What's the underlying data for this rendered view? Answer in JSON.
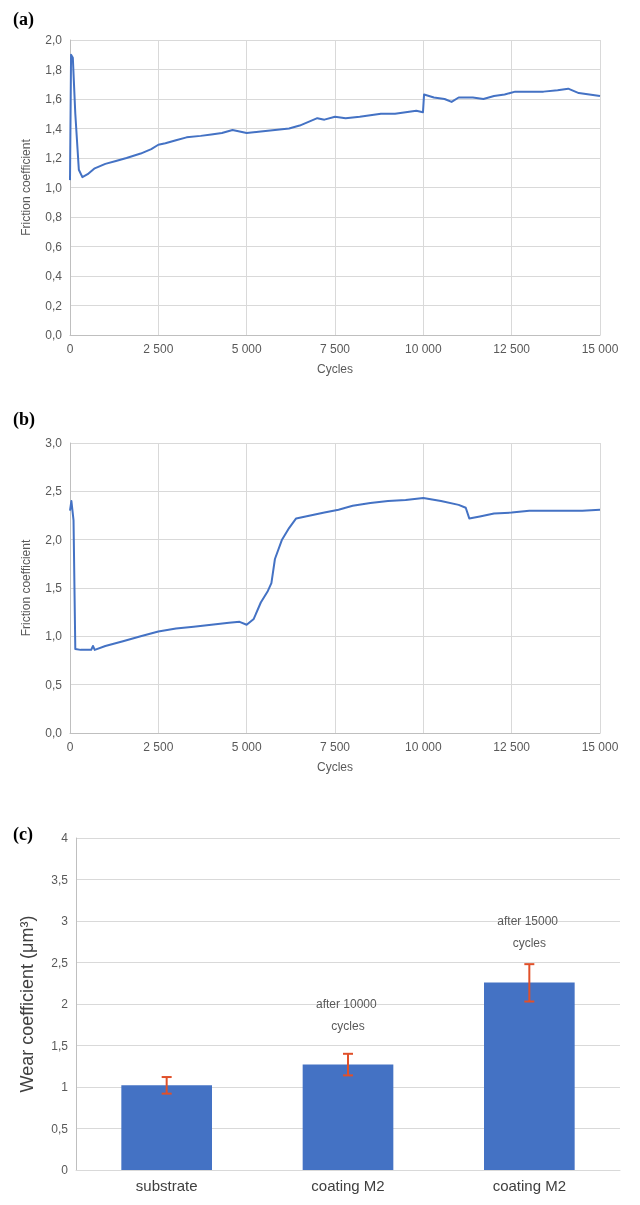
{
  "chart_data": [
    {
      "type": "line",
      "title": "(a)",
      "xlabel": "Cycles",
      "ylabel": "Friction coefficient",
      "color": "#4472c4",
      "marker": "none",
      "grid": true,
      "x": [
        0,
        30,
        80,
        150,
        250,
        350,
        500,
        700,
        1000,
        1300,
        1600,
        2000,
        2300,
        2500,
        2700,
        3000,
        3300,
        3700,
        4000,
        4300,
        4600,
        5000,
        5400,
        5800,
        6200,
        6500,
        6800,
        7000,
        7200,
        7500,
        7800,
        8200,
        8500,
        8800,
        9200,
        9500,
        9800,
        9990,
        10020,
        10300,
        10600,
        10800,
        11000,
        11400,
        11700,
        12000,
        12300,
        12600,
        13000,
        13400,
        13800,
        14100,
        14400,
        14700,
        15000
      ],
      "values": [
        1.05,
        1.9,
        1.88,
        1.5,
        1.12,
        1.07,
        1.09,
        1.13,
        1.16,
        1.18,
        1.2,
        1.23,
        1.26,
        1.29,
        1.3,
        1.32,
        1.34,
        1.35,
        1.36,
        1.37,
        1.39,
        1.37,
        1.38,
        1.39,
        1.4,
        1.42,
        1.45,
        1.47,
        1.46,
        1.48,
        1.47,
        1.48,
        1.49,
        1.5,
        1.5,
        1.51,
        1.52,
        1.51,
        1.63,
        1.61,
        1.6,
        1.58,
        1.61,
        1.61,
        1.6,
        1.62,
        1.63,
        1.65,
        1.65,
        1.65,
        1.66,
        1.67,
        1.64,
        1.63,
        1.62
      ],
      "xlim": [
        0,
        15000
      ],
      "xticks": [
        0,
        {
          "value": 2500,
          "label": "2 500"
        },
        {
          "value": 5000,
          "label": "5 000"
        },
        {
          "value": 7500,
          "label": "7 500"
        },
        {
          "value": 10000,
          "label": "10 000"
        },
        {
          "value": 12500,
          "label": "12 500"
        },
        {
          "value": 15000,
          "label": "15 000"
        }
      ],
      "ylim": [
        0,
        2
      ],
      "yticks": [
        {
          "value": 0,
          "label": "0,0"
        },
        {
          "value": 0.2,
          "label": "0,2"
        },
        {
          "value": 0.4,
          "label": "0,4"
        },
        {
          "value": 0.6,
          "label": "0,6"
        },
        {
          "value": 0.8,
          "label": "0,8"
        },
        {
          "value": 1,
          "label": "1,0"
        },
        {
          "value": 1.2,
          "label": "1,2"
        },
        {
          "value": 1.4,
          "label": "1,4"
        },
        {
          "value": 1.6,
          "label": "1,6"
        },
        {
          "value": 1.8,
          "label": "1,8"
        },
        {
          "value": 2,
          "label": "2,0"
        }
      ]
    },
    {
      "type": "line",
      "title": "(b)",
      "xlabel": "Cycles",
      "ylabel": "Friction coefficient",
      "color": "#4472c4",
      "marker": "none",
      "grid": true,
      "x": [
        0,
        40,
        100,
        150,
        300,
        600,
        650,
        700,
        1000,
        1500,
        2000,
        2500,
        3000,
        3500,
        4000,
        4500,
        4800,
        5000,
        5200,
        5400,
        5600,
        5700,
        5800,
        6000,
        6200,
        6400,
        6800,
        7200,
        7600,
        8000,
        8500,
        9000,
        9500,
        10000,
        10500,
        11000,
        11200,
        11300,
        11600,
        12000,
        12500,
        13000,
        13500,
        14000,
        14500,
        15000
      ],
      "values": [
        2.3,
        2.4,
        2.2,
        0.87,
        0.86,
        0.86,
        0.9,
        0.86,
        0.9,
        0.95,
        1.0,
        1.05,
        1.08,
        1.1,
        1.12,
        1.14,
        1.15,
        1.12,
        1.18,
        1.35,
        1.47,
        1.55,
        1.8,
        2.0,
        2.12,
        2.22,
        2.25,
        2.28,
        2.31,
        2.35,
        2.38,
        2.4,
        2.41,
        2.43,
        2.4,
        2.36,
        2.33,
        2.22,
        2.24,
        2.27,
        2.28,
        2.3,
        2.3,
        2.3,
        2.3,
        2.31
      ],
      "xlim": [
        0,
        15000
      ],
      "xticks": [
        0,
        {
          "value": 2500,
          "label": "2 500"
        },
        {
          "value": 5000,
          "label": "5 000"
        },
        {
          "value": 7500,
          "label": "7 500"
        },
        {
          "value": 10000,
          "label": "10 000"
        },
        {
          "value": 12500,
          "label": "12 500"
        },
        {
          "value": 15000,
          "label": "15 000"
        }
      ],
      "ylim": [
        0,
        3
      ],
      "yticks": [
        {
          "value": 0,
          "label": "0,0"
        },
        {
          "value": 0.5,
          "label": "0,5"
        },
        {
          "value": 1,
          "label": "1,0"
        },
        {
          "value": 1.5,
          "label": "1,5"
        },
        {
          "value": 2,
          "label": "2,0"
        },
        {
          "value": 2.5,
          "label": "2,5"
        },
        {
          "value": 3,
          "label": "3,0"
        }
      ]
    },
    {
      "type": "bar",
      "title": "(c)",
      "ylabel": "Wear coefficient (μm³)",
      "color": "#4472c4",
      "grid": "y",
      "categories": [
        "substrate",
        "coating M2",
        "coating M2"
      ],
      "values": [
        1.02,
        1.27,
        2.26
      ],
      "errors": [
        0.1,
        0.13,
        [
          2.03,
          2.48
        ]
      ],
      "value_labels": [
        null,
        "after 10000 cycles",
        "after 15000 cycles"
      ],
      "ylim": [
        0,
        4
      ],
      "yticks": [
        0,
        {
          "value": 0.5,
          "label": "0,5"
        },
        1,
        {
          "value": 1.5,
          "label": "1,5"
        },
        2,
        {
          "value": 2.5,
          "label": "2,5"
        },
        3,
        {
          "value": 3.5,
          "label": "3,5"
        },
        4
      ]
    }
  ]
}
